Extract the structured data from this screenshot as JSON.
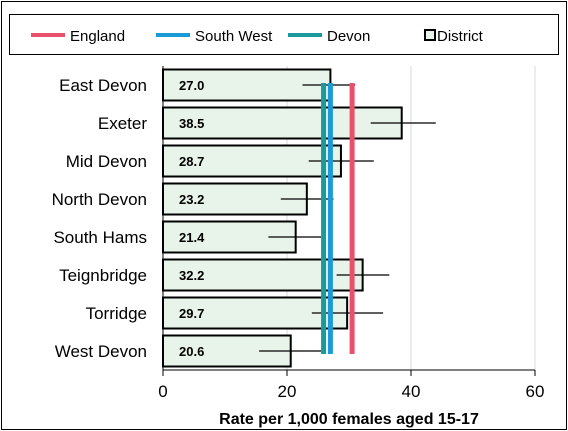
{
  "chart_data": {
    "type": "bar",
    "orientation": "horizontal",
    "categories": [
      "East Devon",
      "Exeter",
      "Mid Devon",
      "North Devon",
      "South Hams",
      "Teignbridge",
      "Torridge",
      "West Devon"
    ],
    "values": [
      27.0,
      38.5,
      28.7,
      23.2,
      21.4,
      32.2,
      29.7,
      20.6
    ],
    "value_labels": [
      "27.0",
      "38.5",
      "28.7",
      "23.2",
      "21.4",
      "32.2",
      "29.7",
      "20.6"
    ],
    "error_low": [
      22.5,
      33.5,
      23.5,
      19.0,
      17.0,
      28.0,
      24.0,
      15.5
    ],
    "error_high": [
      31.0,
      44.0,
      34.0,
      27.5,
      25.5,
      36.5,
      35.5,
      25.5
    ],
    "reference_lines": [
      {
        "name": "England",
        "value": 30.5,
        "color": "#e8506b"
      },
      {
        "name": "South West",
        "value": 27.0,
        "color": "#1a9ad6"
      },
      {
        "name": "Devon",
        "value": 25.9,
        "color": "#1a9a9a"
      }
    ],
    "district_legend_label": "District",
    "bar_fill": "#e8f4ea",
    "bar_stroke": "#000000",
    "xlabel": "Rate per 1,000 females aged 15-17",
    "xlim": [
      0,
      60
    ],
    "xticks": [
      0,
      20,
      40,
      60
    ],
    "grid": "vertical",
    "legend_position": "top"
  }
}
